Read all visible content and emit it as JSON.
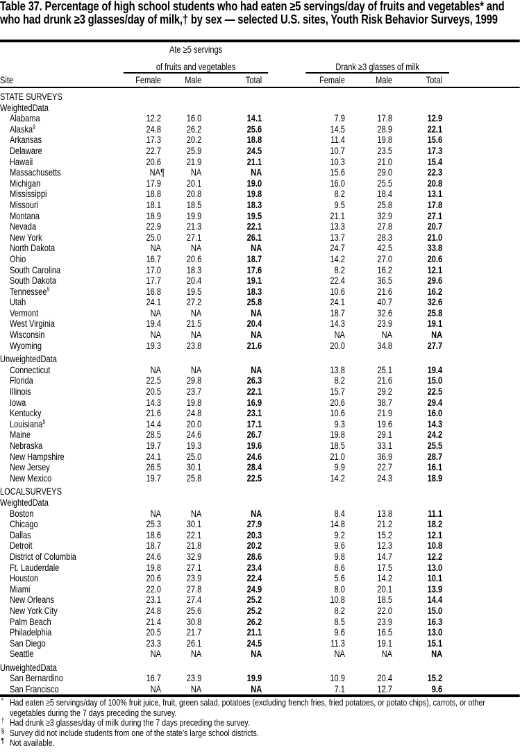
{
  "title": "Table 37. Percentage of high school students who had eaten ≥5 servings/day of fruits and vegetables* and who had drunk ≥3 glasses/day of milk,† by sex — selected U.S. sites, Youth Risk Behavior Surveys, 1999",
  "header": {
    "group1_line1": "Ate ≥5  servings",
    "group1_line2": "of fruits and vegetables",
    "group2": "Drank  ≥3 glasses of milk",
    "columns": [
      "Site",
      "Female",
      "Male",
      "Total",
      "Female",
      "Male",
      "Total"
    ]
  },
  "sections": [
    {
      "heading": "STATE SURVEYS",
      "groups": [
        {
          "label": "WeightedData",
          "rows": [
            {
              "site": "Alabama",
              "mark": "",
              "values": [
                "12.2",
                "16.0",
                "14.1",
                "7.9",
                "17.8",
                "12.9"
              ]
            },
            {
              "site": "Alaska",
              "mark": "§",
              "values": [
                "24.8",
                "26.2",
                "25.6",
                "14.5",
                "28.9",
                "22.1"
              ]
            },
            {
              "site": "Arkansas",
              "mark": "",
              "values": [
                "17.3",
                "20.2",
                "18.8",
                "11.4",
                "19.8",
                "15.6"
              ]
            },
            {
              "site": "Delaware",
              "mark": "",
              "values": [
                "22.7",
                "25.9",
                "24.5",
                "10.7",
                "23.5",
                "17.3"
              ]
            },
            {
              "site": "Hawaii",
              "mark": "",
              "values": [
                "20.6",
                "21.9",
                "21.1",
                "10.3",
                "21.0",
                "15.4"
              ]
            },
            {
              "site": "Massachusetts",
              "mark": "",
              "values": [
                "NA¶",
                "NA",
                "NA",
                "15.6",
                "29.0",
                "22.3"
              ]
            },
            {
              "site": "Michigan",
              "mark": "",
              "values": [
                "17.9",
                "20.1",
                "19.0",
                "16.0",
                "25.5",
                "20.8"
              ]
            },
            {
              "site": "Mississippi",
              "mark": "",
              "values": [
                "18.8",
                "20.8",
                "19.8",
                "8.2",
                "18.4",
                "13.1"
              ]
            },
            {
              "site": "Missouri",
              "mark": "",
              "values": [
                "18.1",
                "18.5",
                "18.3",
                "9.5",
                "25.8",
                "17.8"
              ]
            },
            {
              "site": "Montana",
              "mark": "",
              "values": [
                "18.9",
                "19.9",
                "19.5",
                "21.1",
                "32.9",
                "27.1"
              ]
            },
            {
              "site": "Nevada",
              "mark": "",
              "values": [
                "22.9",
                "21.3",
                "22.1",
                "13.3",
                "27.8",
                "20.7"
              ]
            },
            {
              "site": "New York",
              "mark": "",
              "values": [
                "25.0",
                "27.1",
                "26.1",
                "13.7",
                "28.3",
                "21.0"
              ]
            },
            {
              "site": "North Dakota",
              "mark": "",
              "values": [
                "NA",
                "NA",
                "NA",
                "24.7",
                "42.5",
                "33.8"
              ]
            },
            {
              "site": "Ohio",
              "mark": "",
              "values": [
                "16.7",
                "20.6",
                "18.7",
                "14.2",
                "27.0",
                "20.6"
              ]
            },
            {
              "site": "South Carolina",
              "mark": "",
              "values": [
                "17.0",
                "18.3",
                "17.6",
                "8.2",
                "16.2",
                "12.1"
              ]
            },
            {
              "site": "South Dakota",
              "mark": "",
              "values": [
                "17.7",
                "20.4",
                "19.1",
                "22.4",
                "36.5",
                "29.6"
              ]
            },
            {
              "site": "Tennessee",
              "mark": "§",
              "values": [
                "16.8",
                "19.5",
                "18.3",
                "10.6",
                "21.6",
                "16.2"
              ]
            },
            {
              "site": "Utah",
              "mark": "",
              "values": [
                "24.1",
                "27.2",
                "25.8",
                "24.1",
                "40.7",
                "32.6"
              ]
            },
            {
              "site": "Vermont",
              "mark": "",
              "values": [
                "NA",
                "NA",
                "NA",
                "18.7",
                "32.6",
                "25.8"
              ]
            },
            {
              "site": "West Virginia",
              "mark": "",
              "values": [
                "19.4",
                "21.5",
                "20.4",
                "14.3",
                "23.9",
                "19.1"
              ]
            },
            {
              "site": "Wisconsin",
              "mark": "",
              "values": [
                "NA",
                "NA",
                "NA",
                "NA",
                "NA",
                "NA"
              ]
            },
            {
              "site": "Wyoming",
              "mark": "",
              "values": [
                "19.3",
                "23.8",
                "21.6",
                "20.0",
                "34.8",
                "27.7"
              ]
            }
          ]
        },
        {
          "label": "UnweightedData",
          "rows": [
            {
              "site": "Connecticut",
              "mark": "",
              "values": [
                "NA",
                "NA",
                "NA",
                "13.8",
                "25.1",
                "19.4"
              ]
            },
            {
              "site": "Florida",
              "mark": "",
              "values": [
                "22.5",
                "29.8",
                "26.3",
                "8.2",
                "21.6",
                "15.0"
              ]
            },
            {
              "site": "Illinois",
              "mark": "",
              "values": [
                "20.5",
                "23.7",
                "22.1",
                "15.7",
                "29.2",
                "22.5"
              ]
            },
            {
              "site": "Iowa",
              "mark": "",
              "values": [
                "14.3",
                "19.8",
                "16.9",
                "20.6",
                "38.7",
                "29.4"
              ]
            },
            {
              "site": "Kentucky",
              "mark": "",
              "values": [
                "21.6",
                "24.8",
                "23.1",
                "10.6",
                "21.9",
                "16.0"
              ]
            },
            {
              "site": "Louisiana",
              "mark": "§",
              "values": [
                "14.4",
                "20.0",
                "17.1",
                "9.3",
                "19.6",
                "14.3"
              ]
            },
            {
              "site": "Maine",
              "mark": "",
              "values": [
                "28.5",
                "24.6",
                "26.7",
                "19.8",
                "29.1",
                "24.2"
              ]
            },
            {
              "site": "Nebraska",
              "mark": "",
              "values": [
                "19.7",
                "19.3",
                "19.6",
                "18.5",
                "33.1",
                "25.5"
              ]
            },
            {
              "site": "New Hampshire",
              "mark": "",
              "values": [
                "24.1",
                "25.0",
                "24.6",
                "21.0",
                "36.9",
                "28.7"
              ]
            },
            {
              "site": "New Jersey",
              "mark": "",
              "values": [
                "26.5",
                "30.1",
                "28.4",
                "9.9",
                "22.7",
                "16.1"
              ]
            },
            {
              "site": "New Mexico",
              "mark": "",
              "values": [
                "19.7",
                "25.8",
                "22.5",
                "14.2",
                "24.3",
                "18.9"
              ]
            }
          ]
        }
      ]
    },
    {
      "heading": "LOCALSURVEYS",
      "groups": [
        {
          "label": "WeightedData",
          "rows": [
            {
              "site": "Boston",
              "mark": "",
              "values": [
                "NA",
                "NA",
                "NA",
                "8.4",
                "13.8",
                "11.1"
              ]
            },
            {
              "site": "Chicago",
              "mark": "",
              "values": [
                "25.3",
                "30.1",
                "27.9",
                "14.8",
                "21.2",
                "18.2"
              ]
            },
            {
              "site": "Dallas",
              "mark": "",
              "values": [
                "18.6",
                "22.1",
                "20.3",
                "9.2",
                "15.2",
                "12.1"
              ]
            },
            {
              "site": "Detroit",
              "mark": "",
              "values": [
                "18.7",
                "21.8",
                "20.2",
                "9.6",
                "12.3",
                "10.8"
              ]
            },
            {
              "site": "District of Columbia",
              "mark": "",
              "values": [
                "24.6",
                "32.9",
                "28.6",
                "9.8",
                "14.7",
                "12.2"
              ]
            },
            {
              "site": "Ft. Lauderdale",
              "mark": "",
              "values": [
                "19.8",
                "27.1",
                "23.4",
                "8.6",
                "17.5",
                "13.0"
              ]
            },
            {
              "site": "Houston",
              "mark": "",
              "values": [
                "20.6",
                "23.9",
                "22.4",
                "5.6",
                "14.2",
                "10.1"
              ]
            },
            {
              "site": "Miami",
              "mark": "",
              "values": [
                "22.0",
                "27.8",
                "24.9",
                "8.0",
                "20.1",
                "13.9"
              ]
            },
            {
              "site": "New Orleans",
              "mark": "",
              "values": [
                "23.1",
                "27.4",
                "25.2",
                "10.8",
                "18.5",
                "14.4"
              ]
            },
            {
              "site": "New York City",
              "mark": "",
              "values": [
                "24.8",
                "25.6",
                "25.2",
                "8.2",
                "22.0",
                "15.0"
              ]
            },
            {
              "site": "Palm Beach",
              "mark": "",
              "values": [
                "21.4",
                "30.8",
                "26.2",
                "8.5",
                "23.9",
                "16.3"
              ]
            },
            {
              "site": "Philadelphia",
              "mark": "",
              "values": [
                "20.5",
                "21.7",
                "21.1",
                "9.6",
                "16.5",
                "13.0"
              ]
            },
            {
              "site": "San Diego",
              "mark": "",
              "values": [
                "23.3",
                "26.1",
                "24.5",
                "11.3",
                "19.1",
                "15.1"
              ]
            },
            {
              "site": "Seattle",
              "mark": "",
              "values": [
                "NA",
                "NA",
                "NA",
                "NA",
                "NA",
                "NA"
              ]
            }
          ]
        },
        {
          "label": "UnweightedData",
          "rows": [
            {
              "site": "San Bernardino",
              "mark": "",
              "values": [
                "16.7",
                "23.9",
                "19.9",
                "10.9",
                "20.4",
                "15.2"
              ]
            },
            {
              "site": "San Francisco",
              "mark": "",
              "values": [
                "NA",
                "NA",
                "NA",
                "7.1",
                "12.7",
                "9.6"
              ]
            }
          ]
        }
      ]
    }
  ],
  "footnotes": [
    {
      "mark": "*",
      "text": "Had eaten ≥5 servings/day of 100% fruit juice, fruit, green salad, potatoes (excluding french fries, fried potatoes, or potato chips), carrots, or other vegetables during the 7 days preceding the survey."
    },
    {
      "mark": "†",
      "text": "Had drunk ≥3 glasses/day of milk during the 7 days preceding the survey."
    },
    {
      "mark": "§",
      "text": "Survey did not include students from one of the state’s large school districts."
    },
    {
      "mark": "¶",
      "text": "Not available."
    }
  ]
}
